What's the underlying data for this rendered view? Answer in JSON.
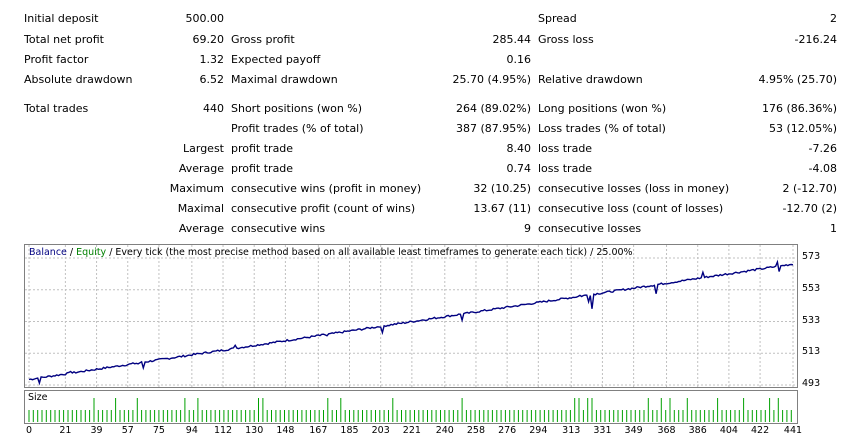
{
  "report": {
    "initial_deposit": {
      "label": "Initial deposit",
      "value": "500.00"
    },
    "spread": {
      "label": "Spread",
      "value": "2"
    },
    "total_net_profit": {
      "label": "Total net profit",
      "value": "69.20"
    },
    "gross_profit": {
      "label": "Gross profit",
      "value": "285.44"
    },
    "gross_loss": {
      "label": "Gross loss",
      "value": "-216.24"
    },
    "profit_factor": {
      "label": "Profit factor",
      "value": "1.32"
    },
    "expected_payoff": {
      "label": "Expected payoff",
      "value": "0.16"
    },
    "absolute_drawdown": {
      "label": "Absolute drawdown",
      "value": "6.52"
    },
    "maximal_drawdown": {
      "label": "Maximal drawdown",
      "value": "25.70 (4.95%)"
    },
    "relative_drawdown": {
      "label": "Relative drawdown",
      "value": "4.95% (25.70)"
    },
    "total_trades": {
      "label": "Total trades",
      "value": "440"
    },
    "short_positions": {
      "label": "Short positions (won %)",
      "value": "264 (89.02%)"
    },
    "long_positions": {
      "label": "Long positions (won %)",
      "value": "176 (86.36%)"
    },
    "profit_trades": {
      "label": "Profit trades (% of total)",
      "value": "387 (87.95%)"
    },
    "loss_trades": {
      "label": "Loss trades (% of total)",
      "value": "53 (12.05%)"
    },
    "largest": {
      "label": "Largest",
      "profit_label": "profit trade",
      "profit_value": "8.40",
      "loss_label": "loss trade",
      "loss_value": "-7.26"
    },
    "average": {
      "label": "Average",
      "profit_label": "profit trade",
      "profit_value": "0.74",
      "loss_label": "loss trade",
      "loss_value": "-4.08"
    },
    "maximum": {
      "label": "Maximum",
      "profit_label": "consecutive wins (profit in money)",
      "profit_value": "32 (10.25)",
      "loss_label": "consecutive losses (loss in money)",
      "loss_value": "2 (-12.70)"
    },
    "maximal": {
      "label": "Maximal",
      "profit_label": "consecutive profit (count of wins)",
      "profit_value": "13.67 (11)",
      "loss_label": "consecutive loss (count of losses)",
      "loss_value": "-12.70 (2)"
    },
    "average_consec": {
      "label": "Average",
      "profit_label": "consecutive wins",
      "profit_value": "9",
      "loss_label": "consecutive losses",
      "loss_value": "1"
    }
  },
  "chart": {
    "header_balance": "Balance",
    "header_sep": " / ",
    "header_equity": "Equity",
    "header_rest": " / Every tick (the most precise method based on all available least timeframes to generate each tick) / 25.00%",
    "size_label": "Size",
    "colors": {
      "balance": "#000080",
      "equity": "#008000",
      "size_bars": "#00a000",
      "grid": "#c0c0c0"
    }
  },
  "chart_data": {
    "type": "line",
    "y_ticks": [
      "573",
      "553",
      "533",
      "513",
      "493"
    ],
    "x_ticks": [
      "0",
      "21",
      "39",
      "57",
      "75",
      "94",
      "112",
      "130",
      "148",
      "167",
      "185",
      "203",
      "221",
      "240",
      "258",
      "276",
      "294",
      "313",
      "331",
      "349",
      "368",
      "386",
      "404",
      "422",
      "441"
    ],
    "ylim": [
      493,
      573
    ],
    "xlim": [
      0,
      441
    ],
    "balance_start": 496.5,
    "balance_end": 569.2,
    "spikes": [
      {
        "x": 6,
        "y": 494.2
      },
      {
        "x": 24,
        "y": 501.5
      },
      {
        "x": 50,
        "y": 505.0
      },
      {
        "x": 63,
        "y": 506.3
      },
      {
        "x": 66,
        "y": 503.8
      },
      {
        "x": 119,
        "y": 518.0
      },
      {
        "x": 167,
        "y": 524.5
      },
      {
        "x": 172,
        "y": 524.0
      },
      {
        "x": 204,
        "y": 526.0
      },
      {
        "x": 250,
        "y": 533.8
      },
      {
        "x": 318,
        "y": 549.5
      },
      {
        "x": 323,
        "y": 545.5
      },
      {
        "x": 325,
        "y": 541.0
      },
      {
        "x": 362,
        "y": 550.5
      },
      {
        "x": 389,
        "y": 564.0
      },
      {
        "x": 428,
        "y": 567.5
      },
      {
        "x": 432,
        "y": 570.5
      },
      {
        "x": 433,
        "y": 564.5
      }
    ]
  }
}
